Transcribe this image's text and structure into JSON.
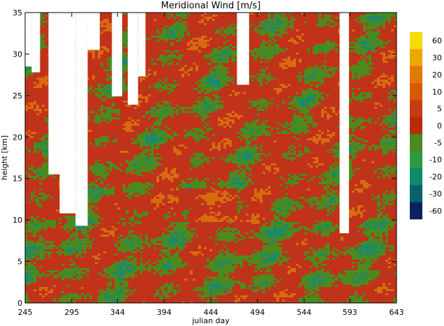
{
  "chart_data": {
    "type": "heatmap",
    "title": "Meridional Wind [m/s]",
    "xlabel": "julian day",
    "ylabel": "height [km]",
    "xlim": [
      245,
      643
    ],
    "ylim": [
      0,
      35
    ],
    "x_ticks": [
      245,
      295,
      344,
      394,
      444,
      494,
      544,
      593,
      643
    ],
    "y_ticks": [
      0,
      5,
      10,
      15,
      20,
      25,
      30,
      35
    ],
    "colorbar": {
      "labels": [
        "60",
        "30",
        "20",
        "10",
        "5",
        "0",
        "-5",
        "-10",
        "-20",
        "-30",
        "-60"
      ],
      "colors": [
        "#f5dc00",
        "#e8a800",
        "#e07a00",
        "#d85a00",
        "#c83a10",
        "#b82a10",
        "#4d8a1e",
        "#2f9a45",
        "#0e8a6a",
        "#0b5f6e",
        "#0a2360"
      ]
    },
    "field_colors": {
      "red": "#c0321a",
      "green": "#4d8a1e",
      "orange": "#d86a10",
      "teal": "#1a8a6a",
      "missing": "#ffffff"
    },
    "missing_data_regions": [
      {
        "x0": 245,
        "x1": 252,
        "y_top": 28.5
      },
      {
        "x0": 252,
        "x1": 261,
        "y_top": 27.8
      },
      {
        "x0": 270,
        "x1": 282,
        "y_top": 15.5
      },
      {
        "x0": 282,
        "x1": 299,
        "y_top": 10.8
      },
      {
        "x0": 299,
        "x1": 312,
        "y_top": 9.3
      },
      {
        "x0": 312,
        "x1": 325,
        "y_top": 30.5
      },
      {
        "x0": 338,
        "x1": 349,
        "y_top": 24.9
      },
      {
        "x0": 355,
        "x1": 366,
        "y_top": 23.9
      },
      {
        "x0": 366,
        "x1": 374,
        "y_top": 27.3
      },
      {
        "x0": 472,
        "x1": 485,
        "y_top": 26.3
      },
      {
        "x0": 582,
        "x1": 592,
        "y_top": 8.4
      }
    ]
  }
}
